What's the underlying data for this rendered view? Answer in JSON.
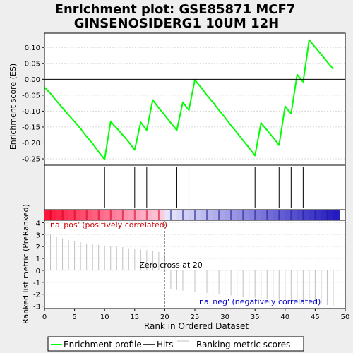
{
  "chart_data": {
    "type": "line",
    "title_line1": "Enrichment plot: GSE85871 MCF7",
    "title_line2": "GINSENOSIDERG1 10UM 12H",
    "ylabel_top": "Enrichment score (ES)",
    "ylabel_bottom": "Ranked list metric (PreRanked)",
    "xlabel": "Rank in Ordered Dataset",
    "x_ticks": [
      0,
      5,
      10,
      15,
      20,
      25,
      30,
      35,
      40,
      45,
      50
    ],
    "es_ticks": [
      "0.10",
      "0.05",
      "0.00",
      "-0.05",
      "-0.10",
      "-0.15",
      "-0.20",
      "-0.25"
    ],
    "es_tick_values": [
      0.1,
      0.05,
      0.0,
      -0.05,
      -0.1,
      -0.15,
      -0.2,
      -0.25
    ],
    "metric_ticks": [
      "4",
      "3",
      "2",
      "1",
      "0",
      "-1",
      "-2",
      "-3"
    ],
    "metric_tick_values": [
      4,
      3,
      2,
      1,
      0,
      -1,
      -2,
      -3
    ],
    "xlim": [
      0,
      50
    ],
    "es_ylim": [
      -0.27,
      0.145
    ],
    "metric_ylim": [
      -3.2,
      4.2
    ],
    "es_curve": {
      "name": "Enrichment profile",
      "color": "#00ff00",
      "x": [
        0,
        1,
        2,
        3,
        4,
        5,
        6,
        7,
        8,
        9,
        10,
        11,
        12,
        13,
        14,
        15,
        16,
        17,
        18,
        19,
        20,
        21,
        22,
        23,
        24,
        25,
        26,
        27,
        28,
        29,
        30,
        31,
        32,
        33,
        34,
        35,
        36,
        37,
        38,
        39,
        40,
        41,
        42,
        43,
        44,
        45,
        46,
        47,
        48
      ],
      "y": [
        -0.025,
        -0.045,
        -0.068,
        -0.09,
        -0.112,
        -0.133,
        -0.155,
        -0.18,
        -0.202,
        -0.228,
        -0.252,
        -0.133,
        -0.153,
        -0.175,
        -0.197,
        -0.222,
        -0.135,
        -0.16,
        -0.065,
        -0.09,
        -0.113,
        -0.137,
        -0.16,
        -0.072,
        -0.097,
        -0.002,
        -0.025,
        -0.05,
        -0.072,
        -0.097,
        -0.12,
        -0.145,
        -0.168,
        -0.192,
        -0.215,
        -0.24,
        -0.137,
        -0.16,
        -0.183,
        -0.207,
        -0.085,
        -0.108,
        0.015,
        -0.008,
        0.124,
        0.101,
        0.078,
        0.055,
        0.032
      ]
    },
    "hits": {
      "name": "Hits",
      "x": [
        10,
        15,
        17,
        22,
        24,
        35,
        39,
        41,
        43
      ]
    },
    "metric": {
      "name": "Ranking metric scores",
      "x": [
        1,
        2,
        3,
        4,
        5,
        6,
        7,
        8,
        9,
        10,
        11,
        12,
        13,
        14,
        15,
        16,
        17,
        18,
        19,
        20,
        21,
        22,
        23,
        24,
        25,
        26,
        27,
        28,
        29,
        30,
        31,
        32,
        33,
        34,
        35,
        36,
        37,
        38,
        39,
        40,
        41,
        42,
        43,
        44,
        45,
        46,
        47,
        48
      ],
      "values": [
        3.0,
        2.85,
        2.7,
        2.55,
        2.45,
        2.35,
        2.25,
        2.2,
        2.15,
        2.1,
        2.05,
        2.0,
        1.95,
        1.85,
        1.8,
        1.75,
        1.7,
        1.6,
        1.55,
        1.5,
        -1.6,
        -1.65,
        -1.7,
        -1.75,
        -1.8,
        -1.85,
        -1.9,
        -1.95,
        -2.0,
        -2.05,
        -2.1,
        -2.15,
        -2.2,
        -2.25,
        -2.3,
        -2.35,
        -2.4,
        -2.45,
        -2.5,
        -2.55,
        -2.6,
        -2.65,
        -2.7,
        -2.75,
        -2.8,
        -2.85,
        -2.9,
        -3.0
      ]
    },
    "zero_cross_x": 20,
    "zero_cross_label": "Zero cross at 20",
    "pos_label": "'na_pos' (positively correlated)",
    "neg_label": "'na_neg' (negatively correlated)",
    "legend": {
      "placement": "bottom",
      "entries": [
        "Enrichment profile",
        "Hits",
        "Ranking metric scores"
      ]
    },
    "colors": {
      "es": "#00ff00",
      "hits": "#000000",
      "metric": "#c0c0c0",
      "pos_text": "#cc0000",
      "neg_text": "#0000cc"
    }
  }
}
